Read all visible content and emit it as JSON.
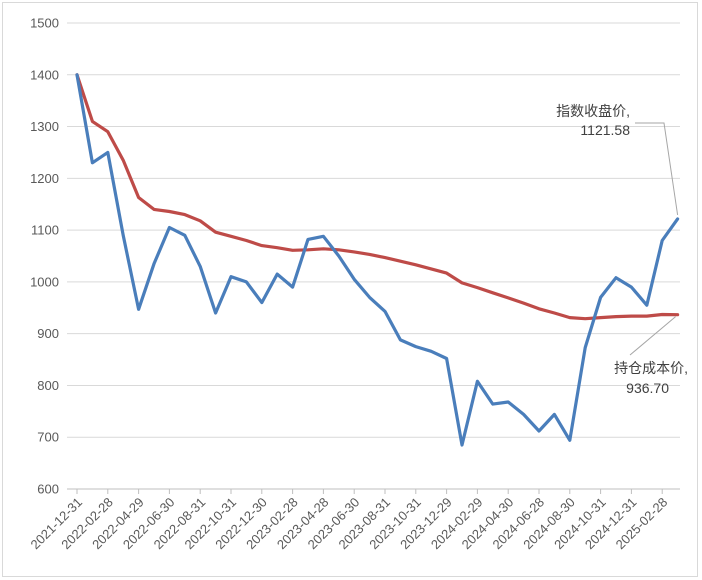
{
  "chart_data": {
    "type": "line",
    "title": "",
    "xlabel": "",
    "ylabel": "",
    "ylim": [
      600,
      1500
    ],
    "yticks": [
      600,
      700,
      800,
      900,
      1000,
      1100,
      1200,
      1300,
      1400,
      1500
    ],
    "grid": true,
    "x_tick_labels": [
      "2021-12-31",
      "2022-02-28",
      "2022-04-29",
      "2022-06-30",
      "2022-08-31",
      "2022-10-31",
      "2022-12-30",
      "2023-02-28",
      "2023-04-28",
      "2023-06-30",
      "2023-08-31",
      "2023-10-31",
      "2023-12-29",
      "2024-02-29",
      "2024-04-30",
      "2024-06-28",
      "2024-08-30",
      "2024-10-31",
      "2024-12-31",
      "2025-02-28"
    ],
    "num_points": 40,
    "series": [
      {
        "color": "#4a7ebb",
        "values": [
          1400,
          1230,
          1250,
          1090,
          947,
          1035,
          1105,
          1090,
          1030,
          940,
          1010,
          1000,
          960,
          1015,
          990,
          1082,
          1088,
          1050,
          1005,
          970,
          943,
          888,
          875,
          866,
          852,
          685,
          808,
          764,
          768,
          744,
          712,
          744,
          694,
          873,
          970,
          1008,
          990,
          955,
          1080,
          1121.58
        ]
      },
      {
        "color": "#be4b48",
        "values": [
          1400,
          1310,
          1290,
          1235,
          1163,
          1140,
          1136,
          1130,
          1118,
          1096,
          1088,
          1080,
          1070,
          1066,
          1061,
          1062,
          1064,
          1062,
          1058,
          1053,
          1047,
          1040,
          1033,
          1025,
          1017,
          998,
          989,
          979,
          969,
          959,
          948,
          940,
          931,
          929,
          931,
          933,
          934,
          934,
          937,
          936.7
        ]
      }
    ],
    "annotations": [
      {
        "label": "指数收盘价,",
        "value": "1121.58"
      },
      {
        "label": "持仓成本价,",
        "value": "936.70"
      }
    ]
  }
}
